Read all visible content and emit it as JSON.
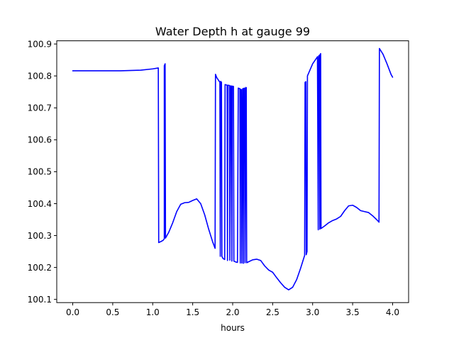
{
  "chart_data": {
    "type": "line",
    "title": "Water Depth h at gauge 99",
    "xlabel": "hours",
    "ylabel": "",
    "xlim": [
      -0.2,
      4.2
    ],
    "ylim": [
      100.09,
      100.91
    ],
    "grid": false,
    "legend": "none",
    "x_ticks": [
      0.0,
      0.5,
      1.0,
      1.5,
      2.0,
      2.5,
      3.0,
      3.5,
      4.0
    ],
    "x_tick_labels": [
      "0.0",
      "0.5",
      "1.0",
      "1.5",
      "2.0",
      "2.5",
      "3.0",
      "3.5",
      "4.0"
    ],
    "y_ticks": [
      100.1,
      100.2,
      100.3,
      100.4,
      100.5,
      100.6,
      100.7,
      100.8,
      100.9
    ],
    "y_tick_labels": [
      "100.1",
      "100.2",
      "100.3",
      "100.4",
      "100.5",
      "100.6",
      "100.7",
      "100.8",
      "100.9"
    ],
    "series": [
      {
        "color": "#0000ff",
        "points": [
          [
            0.0,
            100.816
          ],
          [
            0.3,
            100.816
          ],
          [
            0.6,
            100.816
          ],
          [
            0.85,
            100.818
          ],
          [
            1.0,
            100.822
          ],
          [
            1.07,
            100.825
          ],
          [
            1.075,
            100.278
          ],
          [
            1.1,
            100.281
          ],
          [
            1.13,
            100.285
          ],
          [
            1.145,
            100.29
          ],
          [
            1.145,
            100.832
          ],
          [
            1.155,
            100.838
          ],
          [
            1.16,
            100.292
          ],
          [
            1.2,
            100.31
          ],
          [
            1.25,
            100.34
          ],
          [
            1.3,
            100.375
          ],
          [
            1.35,
            100.398
          ],
          [
            1.4,
            100.403
          ],
          [
            1.45,
            100.404
          ],
          [
            1.5,
            100.41
          ],
          [
            1.55,
            100.415
          ],
          [
            1.6,
            100.4
          ],
          [
            1.65,
            100.365
          ],
          [
            1.7,
            100.32
          ],
          [
            1.75,
            100.28
          ],
          [
            1.78,
            100.26
          ],
          [
            1.785,
            100.805
          ],
          [
            1.8,
            100.795
          ],
          [
            1.84,
            100.78
          ],
          [
            1.845,
            100.235
          ],
          [
            1.85,
            100.783
          ],
          [
            1.86,
            100.78
          ],
          [
            1.865,
            100.235
          ],
          [
            1.88,
            100.228
          ],
          [
            1.9,
            100.225
          ],
          [
            1.905,
            100.773
          ],
          [
            1.93,
            100.771
          ],
          [
            1.935,
            100.222
          ],
          [
            1.94,
            100.771
          ],
          [
            1.96,
            100.77
          ],
          [
            1.965,
            100.223
          ],
          [
            1.975,
            100.769
          ],
          [
            1.985,
            100.768
          ],
          [
            1.99,
            100.22
          ],
          [
            1.995,
            100.768
          ],
          [
            2.01,
            100.767
          ],
          [
            2.015,
            100.22
          ],
          [
            2.04,
            100.217
          ],
          [
            2.06,
            100.216
          ],
          [
            2.07,
            100.762
          ],
          [
            2.09,
            100.76
          ],
          [
            2.095,
            100.214
          ],
          [
            2.1,
            100.758
          ],
          [
            2.11,
            100.757
          ],
          [
            2.115,
            100.214
          ],
          [
            2.125,
            100.76
          ],
          [
            2.13,
            100.76
          ],
          [
            2.135,
            100.213
          ],
          [
            2.14,
            100.761
          ],
          [
            2.15,
            100.762
          ],
          [
            2.155,
            100.215
          ],
          [
            2.165,
            100.764
          ],
          [
            2.17,
            100.763
          ],
          [
            2.175,
            100.215
          ],
          [
            2.2,
            100.218
          ],
          [
            2.25,
            100.224
          ],
          [
            2.3,
            100.226
          ],
          [
            2.35,
            100.222
          ],
          [
            2.4,
            100.205
          ],
          [
            2.45,
            100.192
          ],
          [
            2.5,
            100.185
          ],
          [
            2.55,
            100.168
          ],
          [
            2.6,
            100.152
          ],
          [
            2.65,
            100.138
          ],
          [
            2.7,
            100.13
          ],
          [
            2.75,
            100.138
          ],
          [
            2.8,
            100.162
          ],
          [
            2.85,
            100.198
          ],
          [
            2.9,
            100.238
          ],
          [
            2.905,
            100.78
          ],
          [
            2.915,
            100.782
          ],
          [
            2.92,
            100.24
          ],
          [
            2.93,
            100.25
          ],
          [
            2.935,
            100.8
          ],
          [
            3.0,
            100.838
          ],
          [
            3.06,
            100.86
          ],
          [
            3.07,
            100.318
          ],
          [
            3.075,
            100.862
          ],
          [
            3.085,
            100.865
          ],
          [
            3.09,
            100.32
          ],
          [
            3.095,
            100.868
          ],
          [
            3.1,
            100.87
          ],
          [
            3.105,
            100.322
          ],
          [
            3.15,
            100.33
          ],
          [
            3.2,
            100.34
          ],
          [
            3.25,
            100.347
          ],
          [
            3.3,
            100.352
          ],
          [
            3.35,
            100.36
          ],
          [
            3.4,
            100.378
          ],
          [
            3.45,
            100.393
          ],
          [
            3.5,
            100.395
          ],
          [
            3.55,
            100.388
          ],
          [
            3.6,
            100.378
          ],
          [
            3.65,
            100.375
          ],
          [
            3.7,
            100.372
          ],
          [
            3.75,
            100.362
          ],
          [
            3.8,
            100.35
          ],
          [
            3.83,
            100.342
          ],
          [
            3.835,
            100.886
          ],
          [
            3.88,
            100.868
          ],
          [
            3.93,
            100.838
          ],
          [
            3.98,
            100.805
          ],
          [
            4.0,
            100.796
          ]
        ]
      }
    ]
  }
}
